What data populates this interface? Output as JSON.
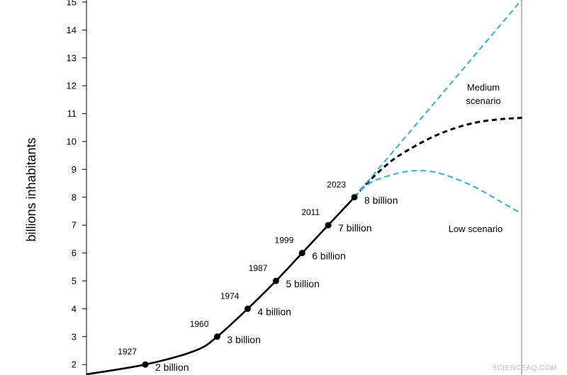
{
  "chart_data": {
    "type": "line",
    "title": "",
    "xlabel": "",
    "ylabel": "billions inhabitants",
    "ylim": [
      1.7,
      15.1
    ],
    "xlim": [
      1900,
      2100
    ],
    "y_ticks": [
      "2",
      "3",
      "4",
      "5",
      "6",
      "7",
      "8",
      "9",
      "10",
      "11",
      "12",
      "13",
      "14",
      "15"
    ],
    "grid": false,
    "colors": {
      "historical": "#000000",
      "medium": "#000000",
      "high": "#2eaed6",
      "low": "#2eaed6",
      "axis": "#000000",
      "frame": "#666666"
    },
    "historical_series": {
      "x": [
        1900,
        1927,
        1950,
        1960,
        1974,
        1987,
        1999,
        2011,
        2023
      ],
      "y": [
        1.65,
        2.0,
        2.5,
        3.0,
        4.0,
        5.0,
        6.0,
        7.0,
        8.0
      ]
    },
    "milestones": [
      {
        "year": "1927",
        "x": 1927,
        "y": 2,
        "label": "2  billion"
      },
      {
        "year": "1960",
        "x": 1960,
        "y": 3,
        "label": "3 billion"
      },
      {
        "year": "1974",
        "x": 1974,
        "y": 4,
        "label": "4  billion"
      },
      {
        "year": "1987",
        "x": 1987,
        "y": 5,
        "label": "5  billion"
      },
      {
        "year": "1999",
        "x": 1999,
        "y": 6,
        "label": "6  billion"
      },
      {
        "year": "2011",
        "x": 2011,
        "y": 7,
        "label": "7  billion"
      },
      {
        "year": "2023",
        "x": 2023,
        "y": 8,
        "label": "8  billion"
      }
    ],
    "series": [
      {
        "name": "Medium scenario",
        "style": "dashed",
        "x": [
          2023,
          2030,
          2040,
          2050,
          2060,
          2070,
          2080,
          2090,
          2100
        ],
        "y": [
          8.0,
          8.6,
          9.3,
          9.8,
          10.2,
          10.5,
          10.7,
          10.8,
          10.85
        ]
      },
      {
        "name": "",
        "style": "dashed",
        "x": [
          2023,
          2100
        ],
        "y": [
          8.0,
          15.1
        ]
      },
      {
        "name": "Low scenario",
        "style": "dashed",
        "x": [
          2023,
          2030,
          2040,
          2050,
          2060,
          2070,
          2080,
          2090,
          2100
        ],
        "y": [
          8.0,
          8.5,
          8.8,
          8.95,
          8.9,
          8.65,
          8.3,
          7.85,
          7.4
        ]
      }
    ],
    "annotations": {
      "medium_line1": "Medium",
      "medium_line2": "scenario",
      "low": "Low scenario"
    }
  },
  "watermark": "SCIENCEAQ.COM"
}
